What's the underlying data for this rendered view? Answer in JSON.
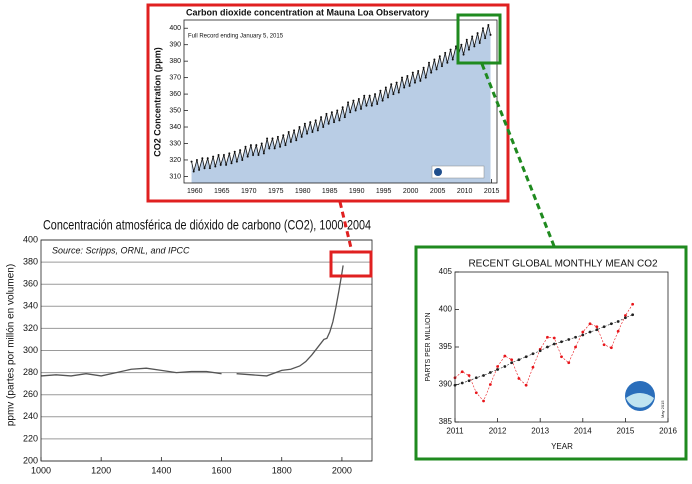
{
  "chart_data": [
    {
      "type": "area",
      "title": "Carbon dioxide concentration at Mauna Loa Observatory",
      "ylabel": "CO2 Concentration (ppm)",
      "annotation": "Full Record ending January 5, 2015",
      "xlim": [
        1958,
        2016
      ],
      "ylim": [
        306,
        405
      ],
      "xticks": [
        1960,
        1965,
        1970,
        1975,
        1980,
        1985,
        1990,
        1995,
        2000,
        2005,
        2010,
        2015
      ],
      "yticks": [
        310,
        320,
        330,
        340,
        350,
        360,
        370,
        380,
        390,
        400
      ],
      "grid": false,
      "fill": "#b9cde5",
      "x": [
        1959.4,
        1959.8,
        1960.4,
        1960.8,
        1961.4,
        1961.8,
        1962.4,
        1962.8,
        1963.4,
        1963.8,
        1964.4,
        1964.8,
        1965.4,
        1965.8,
        1966.4,
        1966.8,
        1967.4,
        1967.8,
        1968.4,
        1968.8,
        1969.4,
        1969.8,
        1970.4,
        1970.8,
        1971.4,
        1971.8,
        1972.4,
        1972.8,
        1973.4,
        1973.8,
        1974.4,
        1974.8,
        1975.4,
        1975.8,
        1976.4,
        1976.8,
        1977.4,
        1977.8,
        1978.4,
        1978.8,
        1979.4,
        1979.8,
        1980.4,
        1980.8,
        1981.4,
        1981.8,
        1982.4,
        1982.8,
        1983.4,
        1983.8,
        1984.4,
        1984.8,
        1985.4,
        1985.8,
        1986.4,
        1986.8,
        1987.4,
        1987.8,
        1988.4,
        1988.8,
        1989.4,
        1989.8,
        1990.4,
        1990.8,
        1991.4,
        1991.8,
        1992.4,
        1992.8,
        1993.4,
        1993.8,
        1994.4,
        1994.8,
        1995.4,
        1995.8,
        1996.4,
        1996.8,
        1997.4,
        1997.8,
        1998.4,
        1998.8,
        1999.4,
        1999.8,
        2000.4,
        2000.8,
        2001.4,
        2001.8,
        2002.4,
        2002.8,
        2003.4,
        2003.8,
        2004.4,
        2004.8,
        2005.4,
        2005.8,
        2006.4,
        2006.8,
        2007.4,
        2007.8,
        2008.4,
        2008.8,
        2009.4,
        2009.8,
        2010.4,
        2010.8,
        2011.4,
        2011.8,
        2012.4,
        2012.8,
        2013.4,
        2013.8,
        2014.4,
        2014.8
      ],
      "series": [
        {
          "color": "#111111",
          "marker": true,
          "values": [
            319,
            313,
            320,
            314,
            321,
            315,
            321,
            315,
            322,
            316,
            323,
            317,
            323,
            317,
            324,
            318,
            325,
            319,
            326,
            320,
            328,
            322,
            329,
            323,
            329,
            323,
            330,
            324,
            333,
            327,
            333,
            327,
            334,
            328,
            335,
            329,
            337,
            331,
            338,
            332,
            340,
            334,
            342,
            336,
            343,
            337,
            344,
            338,
            346,
            340,
            348,
            342,
            349,
            343,
            350,
            344,
            352,
            346,
            355,
            349,
            356,
            350,
            357,
            351,
            359,
            353,
            359,
            353,
            360,
            354,
            362,
            356,
            364,
            358,
            366,
            360,
            367,
            361,
            370,
            364,
            371,
            365,
            373,
            367,
            374,
            368,
            376,
            370,
            379,
            373,
            381,
            375,
            383,
            377,
            385,
            379,
            387,
            381,
            389,
            383,
            390,
            384,
            393,
            387,
            395,
            389,
            397,
            391,
            400,
            394,
            402,
            396
          ]
        }
      ]
    },
    {
      "type": "line",
      "title": "Concentración atmosférica de dióxido de carbono (CO2), 1000-2004",
      "annotation": "Source: Scripps, ORNL, and IPCC",
      "ylabel": "ppmv (partes por millón en volumen)",
      "xlim": [
        1000,
        2100
      ],
      "ylim": [
        200,
        400
      ],
      "xticks": [
        1000,
        1200,
        1400,
        1600,
        1800,
        2000
      ],
      "yticks": [
        200,
        220,
        240,
        260,
        280,
        300,
        320,
        340,
        360,
        380,
        400
      ],
      "grid": true,
      "x": [
        1000,
        1050,
        1100,
        1150,
        1200,
        1250,
        1300,
        1350,
        1400,
        1450,
        1500,
        1550,
        1600,
        1620,
        1650,
        1700,
        1750,
        1800,
        1830,
        1860,
        1880,
        1900,
        1920,
        1940,
        1950,
        1960,
        1970,
        1980,
        1990,
        2000,
        2004
      ],
      "series": [
        {
          "color": "#555555",
          "marker": false,
          "values": [
            277,
            278,
            277,
            279,
            277,
            280,
            283,
            284,
            282,
            280,
            281,
            281,
            279,
            null,
            279,
            278,
            277,
            282,
            283,
            286,
            290,
            296,
            303,
            310,
            311,
            317,
            326,
            339,
            354,
            370,
            377
          ]
        }
      ]
    },
    {
      "type": "line",
      "title": "RECENT GLOBAL MONTHLY MEAN CO2",
      "xlabel": "YEAR",
      "ylabel": "PARTS PER MILLION",
      "annotation": "May 2015",
      "xlim": [
        2011,
        2016
      ],
      "ylim": [
        385,
        405
      ],
      "xticks": [
        2011,
        2012,
        2013,
        2014,
        2015,
        2016
      ],
      "yticks": [
        385,
        390,
        395,
        400,
        405
      ],
      "grid": false,
      "x": [
        2011,
        2011.17,
        2011.33,
        2011.5,
        2011.67,
        2011.83,
        2012,
        2012.17,
        2012.33,
        2012.5,
        2012.67,
        2012.83,
        2013,
        2013.17,
        2013.33,
        2013.5,
        2013.67,
        2013.83,
        2014,
        2014.17,
        2014.33,
        2014.5,
        2014.67,
        2014.83,
        2015,
        2015.17
      ],
      "series": [
        {
          "color": "#e8161b",
          "marker": true,
          "dashed": true,
          "values": [
            390.9,
            391.7,
            391.2,
            388.9,
            387.8,
            390.0,
            392.4,
            393.8,
            393.3,
            390.8,
            389.9,
            392.3,
            394.7,
            396.3,
            396.2,
            393.7,
            392.9,
            395.0,
            397.0,
            398.1,
            397.7,
            395.3,
            394.9,
            397.1,
            399.2,
            400.7
          ]
        },
        {
          "color": "#222222",
          "marker": true,
          "dashed": true,
          "values": [
            389.9,
            390.2,
            390.5,
            390.9,
            391.2,
            391.6,
            392.0,
            392.4,
            392.9,
            393.3,
            393.7,
            394.1,
            394.5,
            395.0,
            395.4,
            395.7,
            396.0,
            396.3,
            396.6,
            397.0,
            397.3,
            397.7,
            398.1,
            398.4,
            398.9,
            399.3
          ]
        }
      ]
    }
  ]
}
